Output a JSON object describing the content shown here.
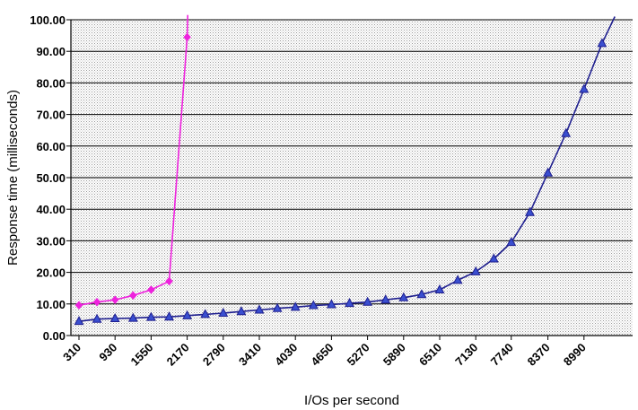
{
  "chart_data": {
    "type": "line",
    "title": "",
    "xlabel": "I/Os per second",
    "ylabel": "Response time (milliseconds)",
    "ylim": [
      0,
      100
    ],
    "yticks": [
      "0.00",
      "10.00",
      "20.00",
      "30.00",
      "40.00",
      "50.00",
      "60.00",
      "70.00",
      "80.00",
      "90.00",
      "100.00"
    ],
    "xtick_labels": [
      "310",
      "930",
      "1550",
      "2170",
      "2790",
      "3410",
      "4030",
      "4650",
      "5270",
      "5890",
      "6510",
      "7130",
      "7740",
      "8370",
      "8990"
    ],
    "grid": "horizontal",
    "background": "dotted gray",
    "series": [
      {
        "color": "#ee22dd",
        "marker": "diamond",
        "points": [
          [
            310,
            9.6
          ],
          [
            620,
            10.6
          ],
          [
            930,
            11.3
          ],
          [
            1240,
            12.7
          ],
          [
            1550,
            14.5
          ],
          [
            1860,
            17.2
          ],
          [
            2170,
            94.5
          ],
          [
            2180,
            101.5
          ]
        ]
      },
      {
        "color": "#1f1f8f",
        "marker_fill": "#3a4fd0",
        "marker": "triangle",
        "points": [
          [
            310,
            4.5
          ],
          [
            620,
            5.2
          ],
          [
            930,
            5.4
          ],
          [
            1240,
            5.5
          ],
          [
            1550,
            5.8
          ],
          [
            1860,
            5.9
          ],
          [
            2170,
            6.3
          ],
          [
            2480,
            6.7
          ],
          [
            2790,
            7.1
          ],
          [
            3100,
            7.6
          ],
          [
            3410,
            8.1
          ],
          [
            3720,
            8.6
          ],
          [
            4030,
            9.0
          ],
          [
            4340,
            9.5
          ],
          [
            4650,
            9.8
          ],
          [
            4960,
            10.2
          ],
          [
            5270,
            10.6
          ],
          [
            5580,
            11.3
          ],
          [
            5890,
            12.0
          ],
          [
            6200,
            13.0
          ],
          [
            6510,
            14.5
          ],
          [
            6820,
            17.5
          ],
          [
            7130,
            20.2
          ],
          [
            7440,
            24.3
          ],
          [
            7740,
            29.5
          ],
          [
            8060,
            39.0
          ],
          [
            8370,
            51.5
          ],
          [
            8680,
            64.0
          ],
          [
            8990,
            78.0
          ],
          [
            9300,
            92.5
          ],
          [
            9520,
            101.0
          ]
        ]
      }
    ]
  }
}
